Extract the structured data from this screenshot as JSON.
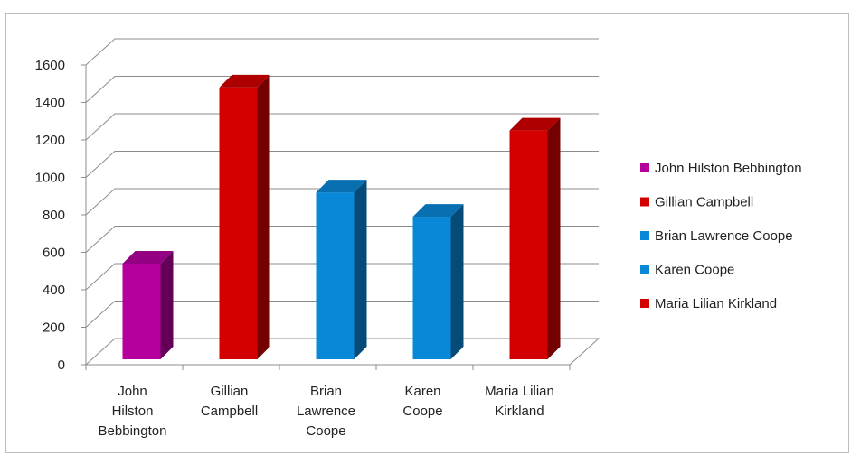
{
  "chart_data": {
    "type": "bar",
    "categories": [
      [
        "John",
        "Hilston",
        "Bebbington"
      ],
      [
        "Gillian",
        "Campbell"
      ],
      [
        "Brian",
        "Lawrence",
        "Coope"
      ],
      [
        "Karen",
        "Coope"
      ],
      [
        "Maria Lilian",
        "Kirkland"
      ]
    ],
    "values": [
      540,
      1480,
      920,
      790,
      1250
    ],
    "colors": [
      "#b5009e",
      "#d40000",
      "#0a88d8",
      "#0a88d8",
      "#d40000"
    ],
    "yticks": [
      0,
      200,
      400,
      600,
      800,
      1000,
      1200,
      1400,
      1600
    ],
    "ylim": [
      0,
      1600
    ],
    "grid": true,
    "legend_position": "right",
    "legend": [
      {
        "label": "John Hilston Bebbington",
        "color": "#b5009e"
      },
      {
        "label": "Gillian Campbell",
        "color": "#d40000"
      },
      {
        "label": "Brian Lawrence Coope",
        "color": "#0a88d8"
      },
      {
        "label": "Karen Coope",
        "color": "#0a88d8"
      },
      {
        "label": "Maria Lilian Kirkland",
        "color": "#d40000"
      }
    ]
  }
}
